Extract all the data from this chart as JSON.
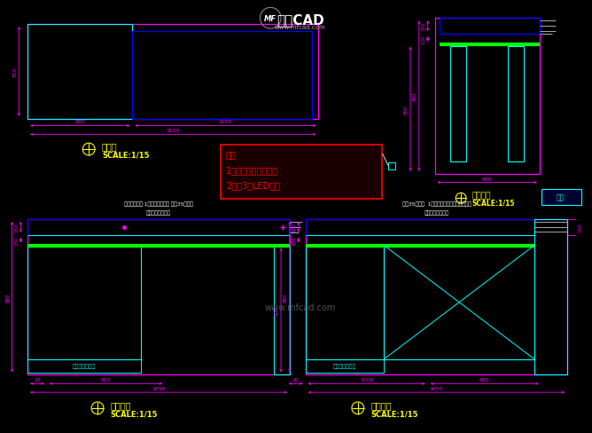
{
  "bg_color": "#000000",
  "cyan": "#00ffff",
  "blue": "#0000ff",
  "magenta": "#ff00ff",
  "green": "#00ff00",
  "white": "#ffffff",
  "yellow": "#ffff00",
  "red": "#ff0000",
  "gray": "#aaaaaa",
  "plan_label": "平面图",
  "plan_scale": "SCALE:1/15",
  "side_label": "侧立面图",
  "side_scale": "SCALE:1/15",
  "front_label": "外立面图",
  "front_scale": "SCALE:1/15",
  "inner_label": "内立面图",
  "inner_scale": "SCALE:1/15",
  "note_line1": "注：",
  "note_line2": "1所有玻璃均用超白坡",
  "note_line3": "2预留3面LED灯槽",
  "front_top_label": "白色亮光烤漆·1公分不锈锂剖槽 永昂35号绲布",
  "front_top_label2": "（转角处均剖槽）",
  "inner_top_label": "永昂35号绲布  1公分不锈锂剖槽白色亮光烤漆",
  "inner_top_label2": "（转角处均剖槽）",
  "mirror_label": "镜面不锈锂踢脚",
  "cmd_label": "命令:",
  "watermark_center": "www.mfcad.com",
  "logo_text": "沐风CAD",
  "logo_url": "www.mfcad.com",
  "figsize": [
    6.68,
    4.89
  ],
  "dpi": 100
}
